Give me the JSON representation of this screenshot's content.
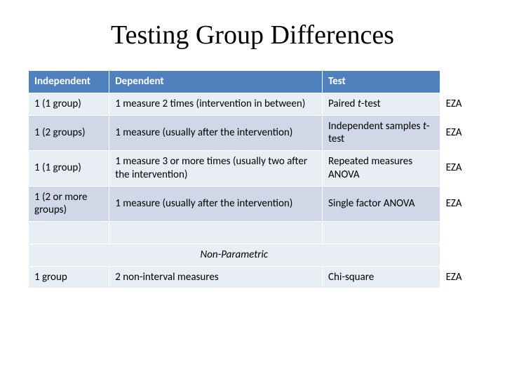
{
  "title": "Testing Group Differences",
  "table": {
    "columns": [
      "Independent",
      "Dependent",
      "Test",
      ""
    ],
    "rows": [
      {
        "independent": "1 (1 group)",
        "dependent": "1 measure 2 times (intervention in between)",
        "test_html": "Paired <span class=\"ital\">t</span>-test",
        "tag": "EZA"
      },
      {
        "independent": "1 (2 groups)",
        "dependent": "1 measure (usually after the intervention)",
        "test_html": "Independent samples <span class=\"ital\">t</span>-test",
        "tag": "EZA"
      },
      {
        "independent": "1  (1 group)",
        "dependent": "1 measure 3 or more times (usually two after the intervention)",
        "test_html": "Repeated measures ANOVA",
        "tag": "EZA"
      },
      {
        "independent": "1 (2 or more groups)",
        "dependent": "1 measure (usually after the intervention)",
        "test_html": "Single factor ANOVA",
        "tag": "EZA"
      }
    ],
    "nonparam_label": "Non-Parametric",
    "nonparam_rows": [
      {
        "independent": "1 group",
        "dependent": "2 non-interval measures",
        "test_html": "Chi-square",
        "tag": "EZA"
      }
    ]
  },
  "colors": {
    "header_bg": "#4f81bd",
    "row_light": "#e9edf4",
    "row_dark": "#d0d8e8",
    "border": "#ffffff"
  }
}
